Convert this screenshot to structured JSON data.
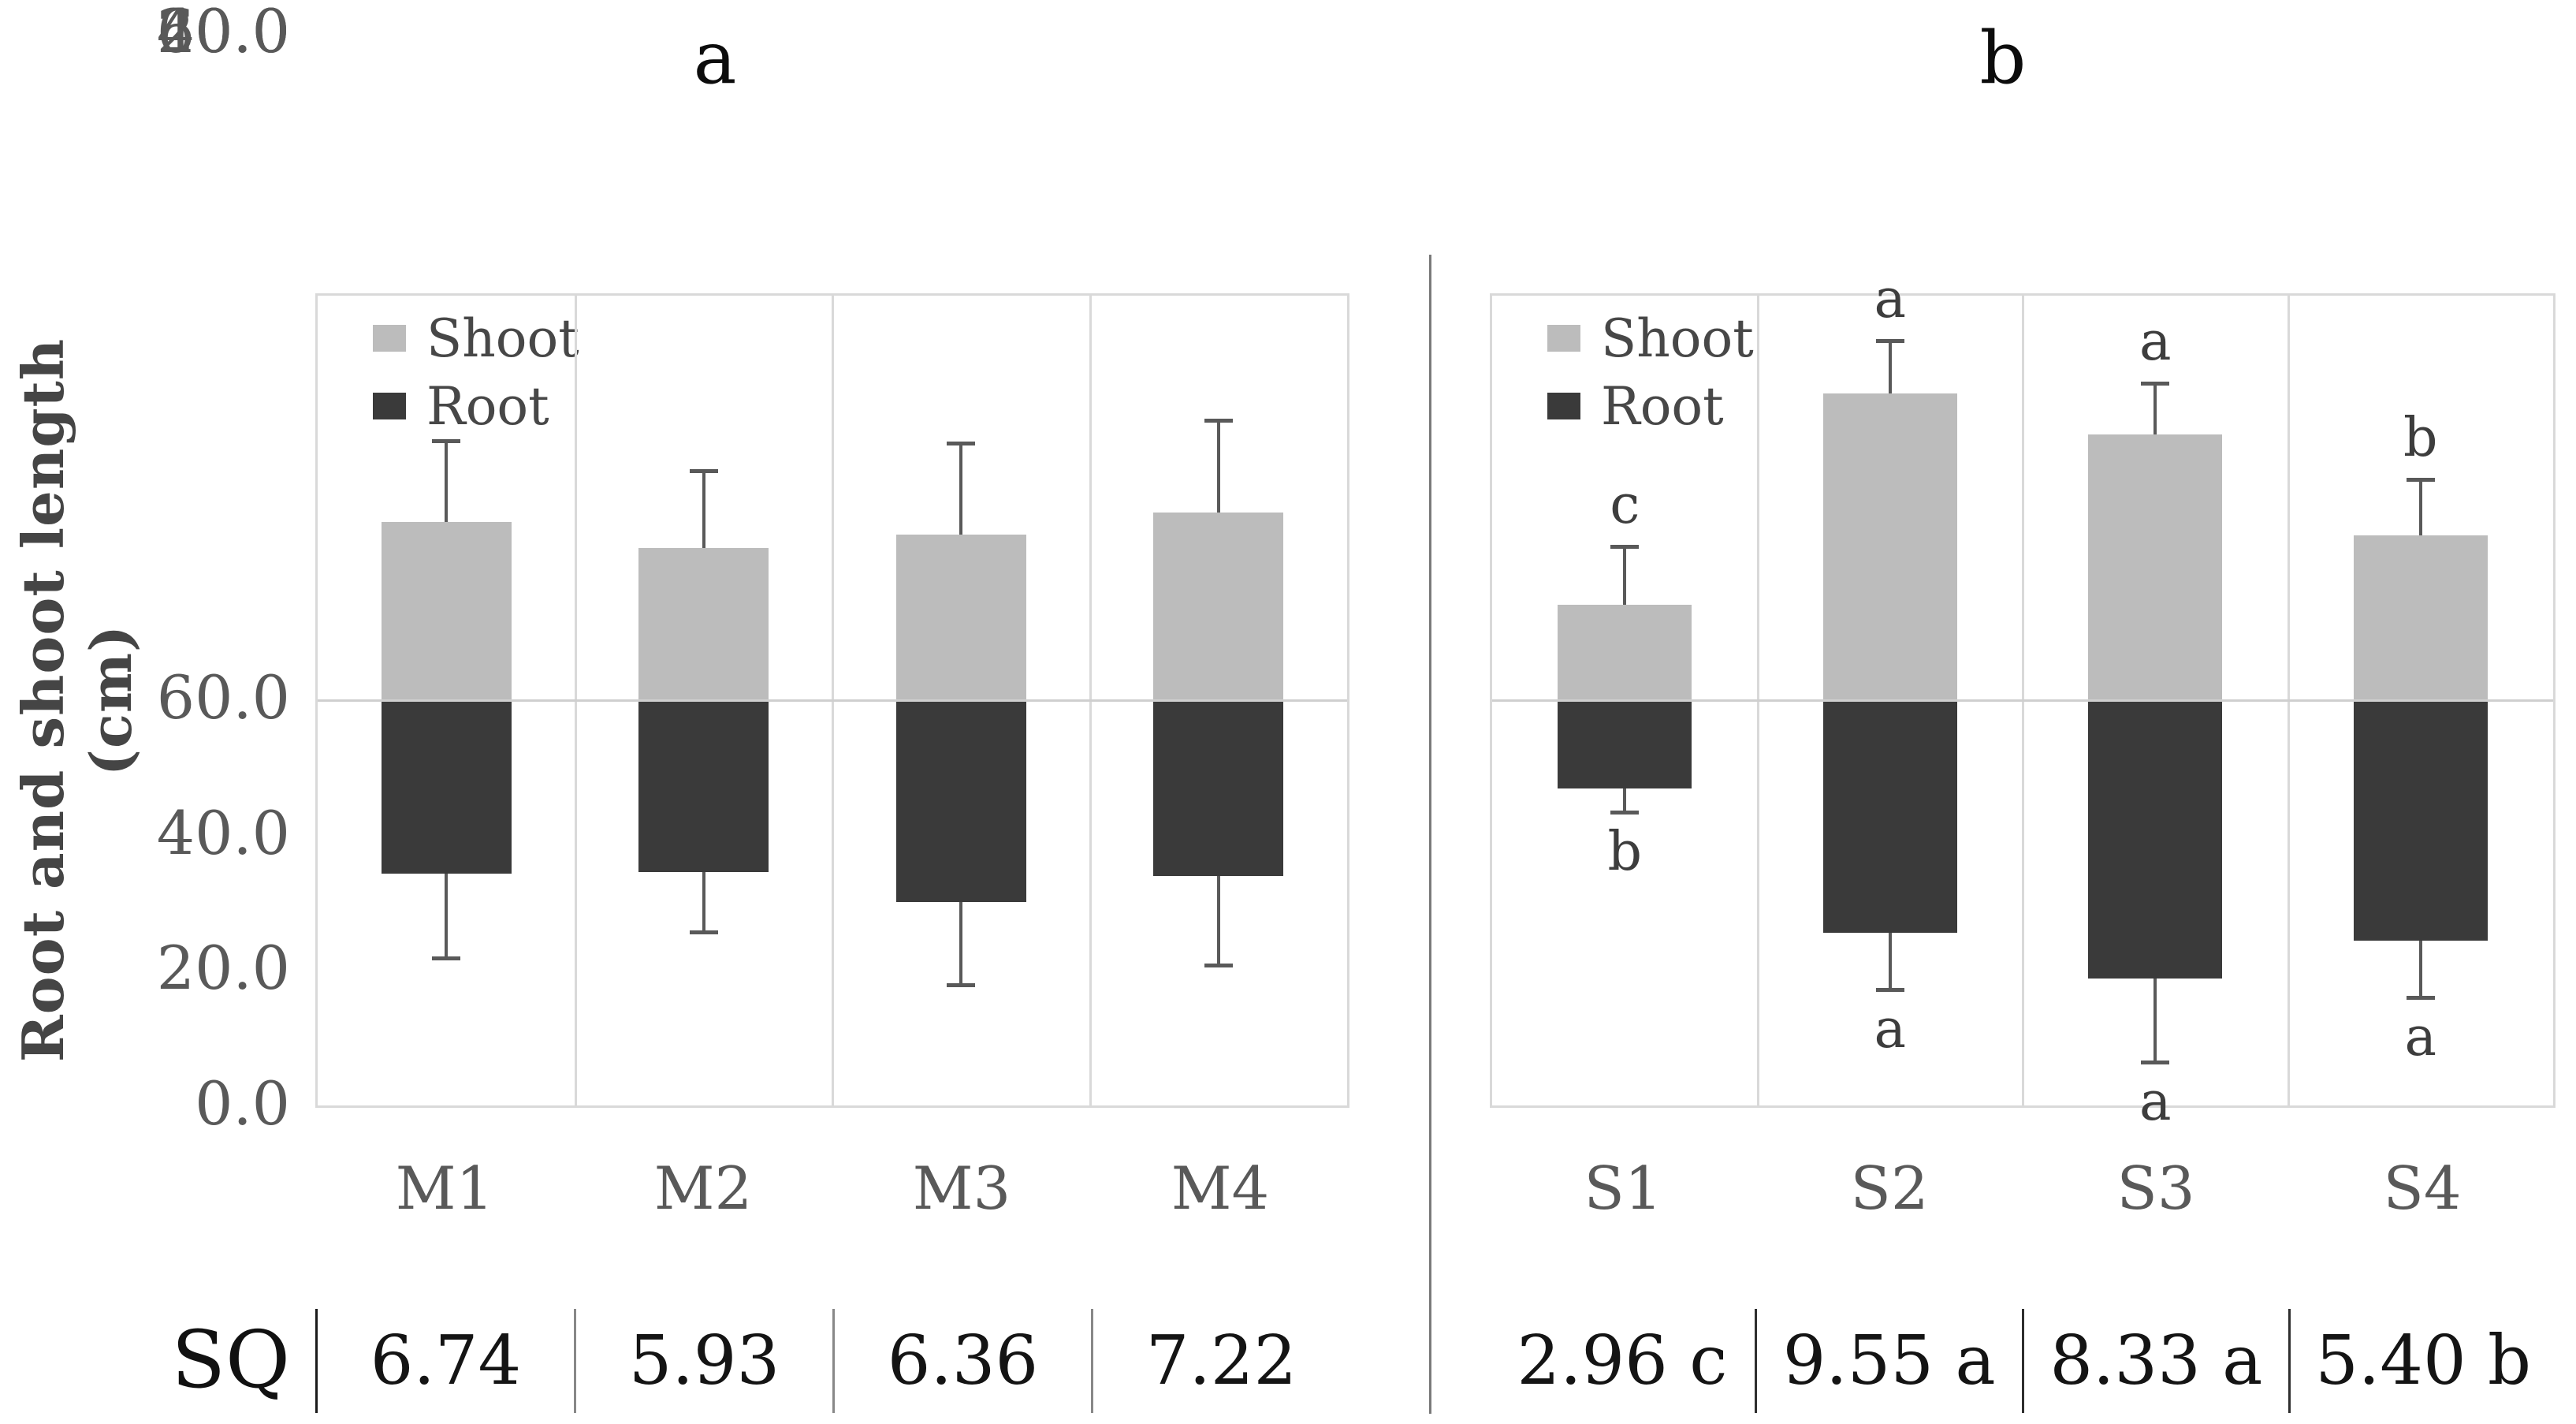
{
  "figure": {
    "panel_a_title": "a",
    "panel_b_title": "b",
    "y_axis_title": "Root and shoot length (cm)",
    "sq_row_label": "SQ"
  },
  "legend": {
    "shoot": "Shoot",
    "root": "Root"
  },
  "axis": {
    "ticks": [
      "60.0",
      "40.0",
      "20.0",
      "0.0",
      "20.0",
      "40.0",
      "60.0"
    ],
    "tick_step_cm": 20,
    "ylim": [
      -60,
      60
    ]
  },
  "colors": {
    "shoot_bar": "#bcbcbc",
    "root_bar": "#3a3a3a",
    "error_bar": "#595959",
    "grid": "#d9d9d9",
    "zero_line": "#cfcfcf",
    "tick_text": "#595959",
    "letter_text": "#3d3d3d",
    "sq_text": "#141414"
  },
  "chart_data": [
    {
      "type": "bar",
      "panel": "a",
      "title": "a",
      "ylabel": "Root and shoot length (cm)",
      "ylim": [
        -60,
        60
      ],
      "grid": "category separators only, zero line",
      "legend_position": "top-left inside plot",
      "categories": [
        "M1",
        "M2",
        "M3",
        "M4"
      ],
      "series": [
        {
          "name": "Shoot",
          "direction": "up",
          "values": [
            26.5,
            22.6,
            24.6,
            27.9
          ],
          "errors": [
            12.0,
            11.5,
            13.6,
            13.6
          ],
          "letters": [
            "",
            "",
            "",
            ""
          ]
        },
        {
          "name": "Root",
          "direction": "down",
          "values": [
            25.7,
            25.4,
            29.8,
            26.0
          ],
          "errors": [
            12.6,
            9.0,
            12.4,
            13.3
          ],
          "letters": [
            "",
            "",
            "",
            ""
          ]
        }
      ],
      "sq_values": [
        "6.74",
        "5.93",
        "6.36",
        "7.22"
      ]
    },
    {
      "type": "bar",
      "panel": "b",
      "title": "b",
      "ylabel": "Root and shoot length (cm)",
      "ylim": [
        -60,
        60
      ],
      "grid": "category separators only, zero line",
      "legend_position": "top-left inside plot",
      "categories": [
        "S1",
        "S2",
        "S3",
        "S4"
      ],
      "series": [
        {
          "name": "Shoot",
          "direction": "up",
          "values": [
            14.2,
            45.5,
            39.4,
            24.5
          ],
          "errors": [
            8.6,
            7.9,
            7.6,
            8.3
          ],
          "letters": [
            "c",
            "a",
            "a",
            "b"
          ]
        },
        {
          "name": "Root",
          "direction": "down",
          "values": [
            13.0,
            34.4,
            41.2,
            35.6
          ],
          "errors": [
            3.6,
            8.5,
            12.5,
            8.5
          ],
          "letters": [
            "b",
            "a",
            "a",
            "a"
          ]
        }
      ],
      "sq_values": [
        "2.96 c",
        "9.55 a",
        "8.33 a",
        "5.40 b"
      ]
    }
  ]
}
